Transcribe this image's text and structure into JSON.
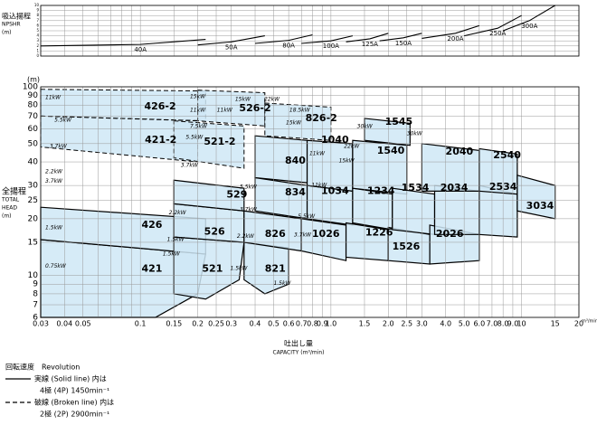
{
  "chart_data": [
    {
      "type": "line",
      "ylabel": [
        "吸込揚程",
        "NPSHR",
        "(m)"
      ],
      "xlim": [
        0.03,
        20
      ],
      "ylim": [
        0,
        10
      ],
      "yticks": [
        0,
        1,
        2,
        3,
        4,
        5,
        6,
        7,
        8,
        9,
        10
      ],
      "xticks": [
        0.03,
        0.04,
        0.05,
        0.1,
        0.15,
        0.2,
        0.25,
        0.3,
        0.4,
        0.5,
        0.6,
        0.7,
        0.8,
        0.9,
        1,
        1.5,
        2,
        2.5,
        3,
        4,
        5,
        6,
        7,
        8,
        9,
        10,
        15,
        20
      ],
      "xminor": [
        0.06,
        0.07,
        0.08,
        0.09
      ],
      "grid": true,
      "color": "#000000",
      "series": [
        {
          "name": "40A",
          "q": [
            0.03,
            0.1,
            0.22
          ],
          "v": [
            2,
            2.3,
            3.3
          ]
        },
        {
          "name": "50A",
          "q": [
            0.2,
            0.3,
            0.45
          ],
          "v": [
            2.2,
            2.8,
            4
          ]
        },
        {
          "name": "80A",
          "q": [
            0.4,
            0.6,
            0.8
          ],
          "v": [
            2.5,
            3.1,
            4.2
          ]
        },
        {
          "name": "100A",
          "q": [
            0.7,
            1,
            1.3
          ],
          "v": [
            2.5,
            3,
            4
          ]
        },
        {
          "name": "125A",
          "q": [
            1.2,
            1.6,
            2
          ],
          "v": [
            2.8,
            3.4,
            4.5
          ]
        },
        {
          "name": "150A",
          "q": [
            1.8,
            2.4,
            3
          ],
          "v": [
            3,
            3.6,
            4.5
          ]
        },
        {
          "name": "200A",
          "q": [
            3,
            4.5,
            6
          ],
          "v": [
            3.5,
            4.5,
            6
          ]
        },
        {
          "name": "250A",
          "q": [
            5,
            7.5,
            10
          ],
          "v": [
            4,
            5.5,
            8
          ]
        },
        {
          "name": "300A",
          "q": [
            8,
            11,
            15
          ],
          "v": [
            5,
            7,
            10
          ]
        }
      ]
    },
    {
      "type": "region",
      "yunit": "(m)",
      "ylabel": [
        "全揚程",
        "TOTAL",
        "HEAD",
        "(m)"
      ],
      "xlabel": [
        "吐出し量",
        "CAPACITY (m³/min)"
      ],
      "xunit": "m³/min",
      "xlim": [
        0.03,
        20
      ],
      "ylim": [
        6,
        100
      ],
      "xticks": [
        0.03,
        0.04,
        0.05,
        0.1,
        0.15,
        0.2,
        0.25,
        0.3,
        0.4,
        0.5,
        0.6,
        0.7,
        0.8,
        0.9,
        {
          "value": 1,
          "label": "1.0"
        },
        1.5,
        {
          "value": 2,
          "label": "2.0"
        },
        2.5,
        {
          "value": 3,
          "label": "3.0"
        },
        {
          "value": 4,
          "label": "4.0"
        },
        {
          "value": 5,
          "label": "5.0"
        },
        {
          "value": 6,
          "label": "6.0"
        },
        {
          "value": 7,
          "label": "7.0"
        },
        {
          "value": 8,
          "label": "8.0"
        },
        {
          "value": 9,
          "label": "9.0"
        },
        10,
        15,
        20
      ],
      "xminor": [
        0.06,
        0.07,
        0.08,
        0.09
      ],
      "yticks": [
        6,
        7,
        8,
        9,
        10,
        15,
        20,
        25,
        30,
        40,
        50,
        60,
        70,
        80,
        90,
        100
      ],
      "grid": true,
      "color": "#cfe8f6",
      "regions": [
        {
          "name": "426-2",
          "dashed": true,
          "q": [
            0.03,
            0.22,
            0.22,
            0.03
          ],
          "h": [
            97,
            95,
            66,
            70
          ],
          "at": [
            0.127,
            78.5
          ]
        },
        {
          "name": "421-2",
          "dashed": true,
          "q": [
            0.03,
            0.2,
            0.2,
            0.03
          ],
          "h": [
            70,
            66,
            40,
            48
          ],
          "at": [
            0.128,
            52.2
          ]
        },
        {
          "name": "526-2",
          "dashed": true,
          "q": [
            0.2,
            0.45,
            0.45,
            0.2
          ],
          "h": [
            96,
            93,
            62,
            66
          ],
          "at": [
            0.4,
            76.7
          ]
        },
        {
          "name": "521-2",
          "dashed": true,
          "q": [
            0.15,
            0.35,
            0.35,
            0.15
          ],
          "h": [
            66,
            62,
            37,
            42
          ],
          "at": [
            0.261,
            51
          ]
        },
        {
          "name": "826-2",
          "dashed": true,
          "q": [
            0.45,
            1,
            1,
            0.45
          ],
          "h": [
            82,
            78,
            52,
            55
          ],
          "at": [
            0.89,
            68
          ]
        },
        {
          "name": "421",
          "dashed": false,
          "q": [
            0.03,
            0.22,
            0.2,
            0.12,
            0.03
          ],
          "h": [
            15.5,
            13,
            8,
            6,
            6
          ],
          "at": [
            0.115,
            10.8
          ]
        },
        {
          "name": "426",
          "dashed": false,
          "q": [
            0.03,
            0.22,
            0.22,
            0.03
          ],
          "h": [
            23,
            20,
            13,
            15.5
          ],
          "at": [
            0.115,
            18.5
          ]
        },
        {
          "name": "521",
          "dashed": false,
          "q": [
            0.15,
            0.35,
            0.33,
            0.22,
            0.15
          ],
          "h": [
            16,
            15,
            9.5,
            7.5,
            8
          ],
          "at": [
            0.239,
            10.8
          ]
        },
        {
          "name": "526",
          "dashed": false,
          "q": [
            0.15,
            0.35,
            0.35,
            0.15
          ],
          "h": [
            24,
            22,
            15,
            16
          ],
          "at": [
            0.245,
            17
          ]
        },
        {
          "name": "529",
          "dashed": false,
          "q": [
            0.15,
            0.35,
            0.35,
            0.15
          ],
          "h": [
            32,
            29,
            22,
            24
          ],
          "at": [
            0.321,
            26.7
          ]
        },
        {
          "name": "821",
          "dashed": false,
          "q": [
            0.35,
            0.6,
            0.6,
            0.45,
            0.35
          ],
          "h": [
            15,
            14,
            9,
            8,
            9.5
          ],
          "at": [
            0.51,
            10.8
          ]
        },
        {
          "name": "826",
          "dashed": false,
          "q": [
            0.35,
            0.7,
            0.7,
            0.35
          ],
          "h": [
            22,
            20,
            13.5,
            15
          ],
          "at": [
            0.51,
            16.6
          ]
        },
        {
          "name": "834",
          "dashed": false,
          "q": [
            0.4,
            0.75,
            0.75,
            0.4
          ],
          "h": [
            33,
            30,
            20,
            22
          ],
          "at": [
            0.65,
            27.5
          ]
        },
        {
          "name": "840",
          "dashed": false,
          "q": [
            0.4,
            0.75,
            0.75,
            0.4
          ],
          "h": [
            55,
            52,
            31,
            33
          ],
          "at": [
            0.65,
            40.5
          ]
        },
        {
          "name": "1026",
          "dashed": false,
          "q": [
            0.7,
            1.2,
            1.2,
            0.7
          ],
          "h": [
            20,
            18.5,
            12,
            13.5
          ],
          "at": [
            0.94,
            16.6
          ]
        },
        {
          "name": "1034",
          "dashed": false,
          "q": [
            0.75,
            1.3,
            1.3,
            0.75
          ],
          "h": [
            30,
            28,
            18.5,
            20
          ],
          "at": [
            1.05,
            27.9
          ]
        },
        {
          "name": "1040",
          "dashed": false,
          "q": [
            0.75,
            1.3,
            1.3,
            0.75
          ],
          "h": [
            52,
            50,
            28,
            30
          ],
          "at": [
            1.05,
            52.2
          ]
        },
        {
          "name": "1226",
          "dashed": false,
          "q": [
            1.2,
            2,
            2,
            1.2
          ],
          "h": [
            19,
            17.5,
            12,
            12.5
          ],
          "at": [
            1.79,
            16.8
          ]
        },
        {
          "name": "1234",
          "dashed": false,
          "q": [
            1.3,
            2.1,
            2.1,
            1.3
          ],
          "h": [
            29,
            27,
            17.5,
            19
          ],
          "at": [
            1.83,
            27.9
          ]
        },
        {
          "name": "1540",
          "dashed": false,
          "q": [
            1.3,
            2.5,
            2.5,
            1.3
          ],
          "h": [
            52,
            49,
            27,
            29
          ],
          "at": [
            2.06,
            45.7
          ]
        },
        {
          "name": "1545",
          "dashed": false,
          "q": [
            1.5,
            2.6,
            2.6,
            1.5
          ],
          "h": [
            68,
            64,
            49,
            52
          ],
          "at": [
            2.27,
            65
          ]
        },
        {
          "name": "1526",
          "dashed": false,
          "q": [
            2,
            3.3,
            3.3,
            2
          ],
          "h": [
            18,
            16.5,
            11.5,
            12
          ],
          "at": [
            2.48,
            14.2
          ]
        },
        {
          "name": "1534",
          "dashed": false,
          "q": [
            2.1,
            3.5,
            3.5,
            2.1
          ],
          "h": [
            29,
            27,
            16.5,
            17.5
          ],
          "at": [
            2.77,
            29.1
          ]
        },
        {
          "name": "2026",
          "dashed": false,
          "q": [
            3.3,
            6,
            6,
            3.3
          ],
          "h": [
            18.5,
            16.5,
            12,
            11.5
          ],
          "at": [
            4.2,
            16.6
          ]
        },
        {
          "name": "2034",
          "dashed": false,
          "q": [
            3.5,
            6,
            6,
            3.5
          ],
          "h": [
            30,
            28,
            16.5,
            16.5
          ],
          "at": [
            4.43,
            29.1
          ]
        },
        {
          "name": "2040",
          "dashed": false,
          "q": [
            3,
            6,
            6,
            3
          ],
          "h": [
            50,
            46,
            28,
            28
          ],
          "at": [
            4.72,
            45.3
          ]
        },
        {
          "name": "2534",
          "dashed": false,
          "q": [
            6,
            9.5,
            9.5,
            6
          ],
          "h": [
            30,
            27,
            16,
            16.5
          ],
          "at": [
            8,
            29.4
          ]
        },
        {
          "name": "2540",
          "dashed": false,
          "q": [
            6,
            9.5,
            9.5,
            6
          ],
          "h": [
            47,
            44,
            27,
            28
          ],
          "at": [
            8.4,
            43.3
          ]
        },
        {
          "name": "3034",
          "dashed": false,
          "q": [
            9.5,
            15,
            15,
            9.5
          ],
          "h": [
            34,
            30,
            20,
            22
          ],
          "at": [
            12.5,
            23.3
          ]
        }
      ],
      "annotations": [
        {
          "text": "11kW",
          "x": 0.0317,
          "y": 87.7
        },
        {
          "text": "5.5kW",
          "x": 0.0354,
          "y": 66.5
        },
        {
          "text": "3.7kW",
          "x": 0.0334,
          "y": 48.3
        },
        {
          "text": "2.2kW",
          "x": 0.0317,
          "y": 35.5
        },
        {
          "text": "3.7kW",
          "x": 0.0317,
          "y": 31.5
        },
        {
          "text": "1.5kW",
          "x": 0.0317,
          "y": 17.9
        },
        {
          "text": "0.75kW",
          "x": 0.0317,
          "y": 11.2
        },
        {
          "text": "15kW",
          "x": 0.182,
          "y": 88.5
        },
        {
          "text": "11kW",
          "x": 0.182,
          "y": 75.1
        },
        {
          "text": "7.5kW",
          "x": 0.182,
          "y": 61.6
        },
        {
          "text": "5.5kW",
          "x": 0.173,
          "y": 54
        },
        {
          "text": "3.7kW",
          "x": 0.163,
          "y": 38.4
        },
        {
          "text": "2.2kW",
          "x": 0.141,
          "y": 21.4
        },
        {
          "text": "1.5kW",
          "x": 0.138,
          "y": 15.5
        },
        {
          "text": "1.5kW",
          "x": 0.131,
          "y": 13
        },
        {
          "text": "15kW",
          "x": 0.314,
          "y": 85.7
        },
        {
          "text": "11kW",
          "x": 0.252,
          "y": 75.1
        },
        {
          "text": "5.5kW",
          "x": 0.332,
          "y": 29.4
        },
        {
          "text": "3.7kW",
          "x": 0.332,
          "y": 22.3
        },
        {
          "text": "2.2kW",
          "x": 0.321,
          "y": 16.1
        },
        {
          "text": "1.5kW",
          "x": 0.296,
          "y": 10.9
        },
        {
          "text": "22kW",
          "x": 0.446,
          "y": 85.7
        },
        {
          "text": "18.5kW",
          "x": 0.605,
          "y": 75.1
        },
        {
          "text": "15kW",
          "x": 0.58,
          "y": 64.4
        },
        {
          "text": "11kW",
          "x": 0.77,
          "y": 44.3
        },
        {
          "text": "5.5kW",
          "x": 0.67,
          "y": 20.5
        },
        {
          "text": "3.7kW",
          "x": 0.64,
          "y": 16.4
        },
        {
          "text": "1.5kW",
          "x": 0.5,
          "y": 9.06
        },
        {
          "text": "30kW",
          "x": 1.37,
          "y": 61.6
        },
        {
          "text": "22kW",
          "x": 1.17,
          "y": 48.3
        },
        {
          "text": "15kW",
          "x": 1.1,
          "y": 40.5
        },
        {
          "text": "11kW",
          "x": 0.79,
          "y": 30.1
        },
        {
          "text": "30kW",
          "x": 2.5,
          "y": 56.4
        }
      ]
    }
  ],
  "legend": [
    "回転速度　Revolution",
    "実線 (Solid line) 内は",
    "4極 (4P) 1450min⁻¹",
    "破線 (Broken line) 内は",
    "2極 (2P) 2900min⁻¹"
  ]
}
